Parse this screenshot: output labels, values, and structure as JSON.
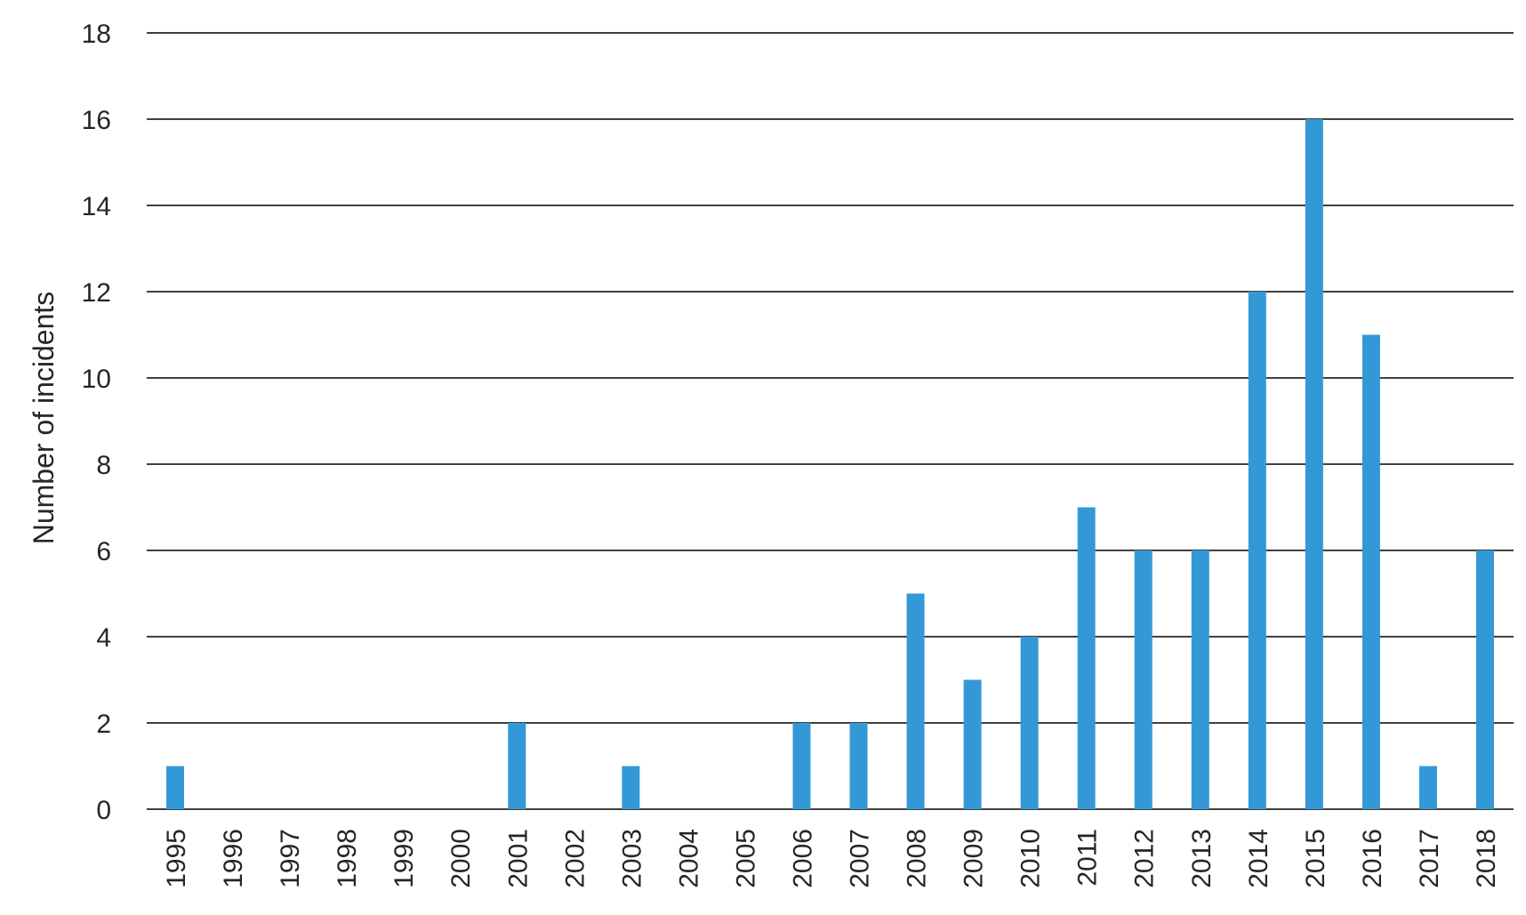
{
  "chart_data": {
    "type": "bar",
    "categories": [
      "1995",
      "1996",
      "1997",
      "1998",
      "1999",
      "2000",
      "2001",
      "2002",
      "2003",
      "2004",
      "2005",
      "2006",
      "2007",
      "2008",
      "2009",
      "2010",
      "2011",
      "2012",
      "2013",
      "2014",
      "2015",
      "2016",
      "2017",
      "2018"
    ],
    "values": [
      1,
      0,
      0,
      0,
      0,
      0,
      2,
      0,
      1,
      0,
      0,
      2,
      2,
      5,
      3,
      4,
      7,
      6,
      6,
      12,
      16,
      11,
      1,
      6
    ],
    "title": "",
    "xlabel": "",
    "ylabel": "Number of incidents",
    "ylim": [
      0,
      18
    ],
    "yticks": [
      0,
      2,
      4,
      6,
      8,
      10,
      12,
      14,
      16,
      18
    ],
    "grid": true,
    "legend": "none",
    "bar_color": "#3399d6"
  }
}
